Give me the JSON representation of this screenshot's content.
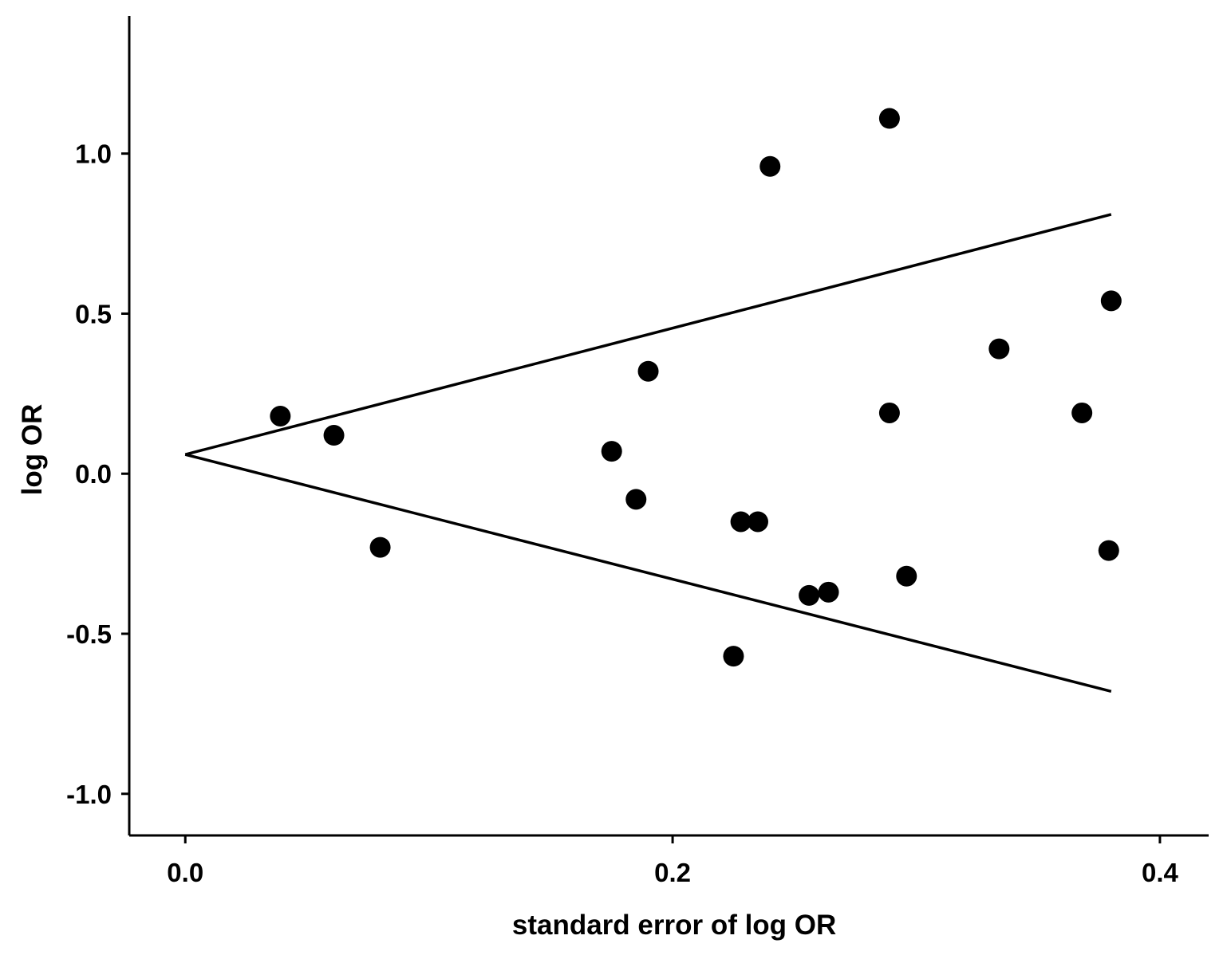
{
  "chart_data": {
    "type": "scatter",
    "title": "",
    "xlabel": "standard error of log OR",
    "ylabel": "log OR",
    "xlim": [
      -0.023,
      0.42
    ],
    "ylim": [
      -1.13,
      1.43
    ],
    "xticks": [
      0.0,
      0.2,
      0.4
    ],
    "xtick_labels": [
      "0.0",
      "0.2",
      "0.4"
    ],
    "yticks": [
      -1.0,
      -0.5,
      0.0,
      0.5,
      1.0
    ],
    "ytick_labels": [
      "-1.0",
      "-0.5",
      "0.0",
      "0.5",
      "1.0"
    ],
    "grid": false,
    "series": [
      {
        "points": [
          {
            "x": 0.039,
            "y": 0.18
          },
          {
            "x": 0.061,
            "y": 0.12
          },
          {
            "x": 0.08,
            "y": -0.23
          },
          {
            "x": 0.175,
            "y": 0.07
          },
          {
            "x": 0.185,
            "y": -0.08
          },
          {
            "x": 0.19,
            "y": 0.32
          },
          {
            "x": 0.225,
            "y": -0.57
          },
          {
            "x": 0.228,
            "y": -0.15
          },
          {
            "x": 0.235,
            "y": -0.15
          },
          {
            "x": 0.24,
            "y": 0.96
          },
          {
            "x": 0.256,
            "y": -0.38
          },
          {
            "x": 0.264,
            "y": -0.37
          },
          {
            "x": 0.289,
            "y": 1.11
          },
          {
            "x": 0.289,
            "y": 0.19
          },
          {
            "x": 0.296,
            "y": -0.32
          },
          {
            "x": 0.334,
            "y": 0.39
          },
          {
            "x": 0.368,
            "y": 0.19
          },
          {
            "x": 0.379,
            "y": -0.24
          },
          {
            "x": 0.38,
            "y": 0.54
          }
        ]
      }
    ],
    "funnel": {
      "apex": {
        "x": 0.0,
        "y": 0.06
      },
      "upper_end": {
        "x": 0.38,
        "y": 0.81
      },
      "lower_end": {
        "x": 0.38,
        "y": -0.68
      }
    },
    "colors": {
      "marker": "#000000",
      "line": "#000000"
    }
  }
}
